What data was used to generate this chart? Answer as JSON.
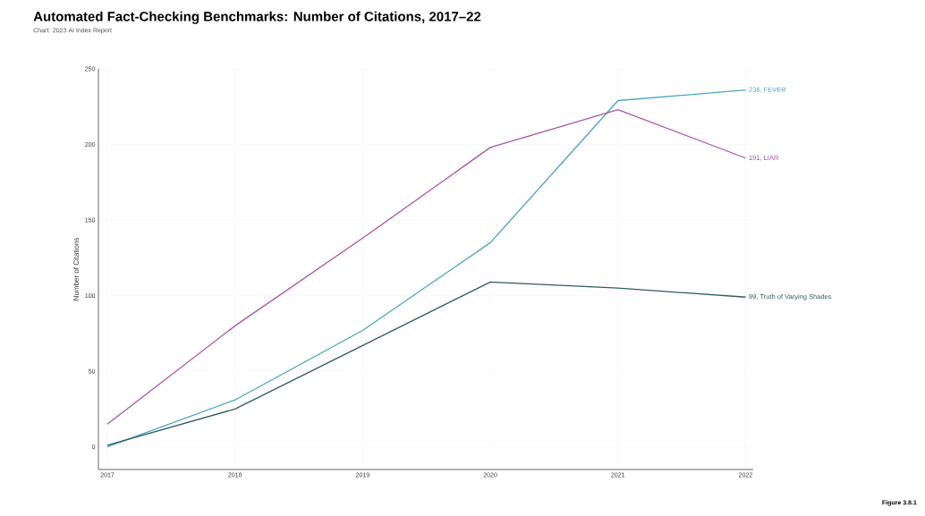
{
  "chart_data": {
    "type": "line",
    "title": "Automated Fact-Checking Benchmarks: Number of Citations, 2017–22",
    "subtitle": "Chart: 2023 AI Index Report",
    "ylabel": "Number of Citations",
    "categories": [
      "2017",
      "2018",
      "2019",
      "2020",
      "2021",
      "2022"
    ],
    "series": [
      {
        "color": "#4aa3c0",
        "values": [
          0,
          31,
          77,
          135,
          229,
          236
        ]
      },
      {
        "color": "#a855a8",
        "values": [
          15,
          80,
          138,
          198,
          223,
          191
        ]
      },
      {
        "color": "#2f5c5c",
        "values": [
          1,
          25,
          67,
          109,
          105,
          99
        ]
      }
    ],
    "ylim": [
      -15,
      250
    ],
    "yticks": [
      0,
      50,
      100,
      150,
      200,
      250
    ],
    "grid": true,
    "annotations": [
      {
        "text": "236, FEVER",
        "x": "2022",
        "y": 236
      },
      {
        "text": "191, LIAR",
        "x": "2022",
        "y": 191
      },
      {
        "text": "99, Truth of Varying Shades",
        "x": "2022",
        "y": 99
      },
      "Figure 3.8.1"
    ]
  }
}
